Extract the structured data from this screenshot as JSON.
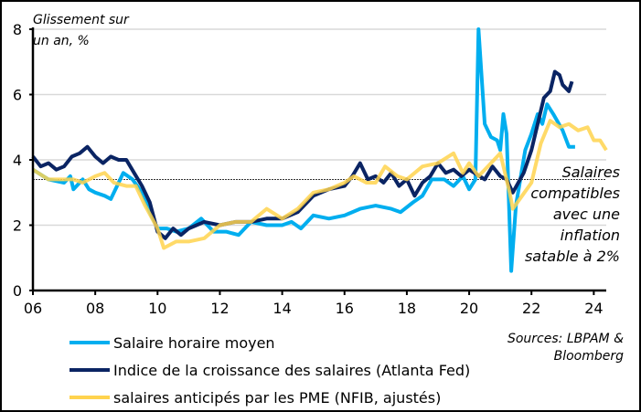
{
  "chart_data": {
    "type": "line",
    "ylabel": "Glissement sur un an, %",
    "ylabel_lines": [
      "Glissement sur",
      "un an, %"
    ],
    "ylim": [
      0,
      8
    ],
    "xlim": [
      2006,
      2024.4
    ],
    "yticks": [
      "0",
      "2",
      "4",
      "6",
      "8"
    ],
    "xticks": [
      "06",
      "08",
      "10",
      "12",
      "14",
      "16",
      "18",
      "20",
      "22",
      "24"
    ],
    "grid": true,
    "reference_line": {
      "value": 3.4,
      "label_lines": [
        "Salaires",
        "compatibles",
        "avec une",
        "inflation",
        "satable à 2%"
      ]
    },
    "sources_lines": [
      "Sources: LBPAM &",
      "Bloomberg"
    ],
    "series": [
      {
        "name": "Salaire horaire moyen",
        "color": "#00AEEF",
        "x": [
          2006,
          2006.5,
          2007,
          2007.2,
          2007.3,
          2007.6,
          2007.8,
          2008,
          2008.3,
          2008.5,
          2008.7,
          2008.9,
          2009.2,
          2009.5,
          2009.8,
          2010,
          2010.3,
          2010.6,
          2011,
          2011.4,
          2011.8,
          2012.2,
          2012.6,
          2013,
          2013.5,
          2014,
          2014.3,
          2014.6,
          2015,
          2015.5,
          2016,
          2016.5,
          2017,
          2017.5,
          2017.8,
          2018.2,
          2018.5,
          2018.8,
          2019.2,
          2019.5,
          2019.8,
          2020,
          2020.2,
          2020.3,
          2020.5,
          2020.7,
          2020.9,
          2021,
          2021.1,
          2021.2,
          2021.35,
          2021.5,
          2021.8,
          2022,
          2022.2,
          2022.35,
          2022.5,
          2022.7,
          2023,
          2023.2,
          2023.4
        ],
        "y": [
          3.7,
          3.4,
          3.3,
          3.5,
          3.1,
          3.4,
          3.1,
          3.0,
          2.9,
          2.8,
          3.2,
          3.6,
          3.4,
          3.0,
          2.3,
          1.9,
          1.9,
          1.8,
          1.9,
          2.2,
          1.8,
          1.8,
          1.7,
          2.1,
          2.0,
          2.0,
          2.1,
          1.9,
          2.3,
          2.2,
          2.3,
          2.5,
          2.6,
          2.5,
          2.4,
          2.7,
          2.9,
          3.4,
          3.4,
          3.2,
          3.5,
          3.1,
          3.4,
          8.0,
          5.1,
          4.7,
          4.6,
          4.3,
          5.4,
          4.8,
          0.6,
          2.6,
          4.3,
          4.8,
          5.4,
          5.1,
          5.7,
          5.4,
          4.9,
          4.4,
          4.4
        ]
      },
      {
        "name": "Indice de la croissance des salaires (Atlanta Fed)",
        "color": "#0A2463",
        "x": [
          2006,
          2006.25,
          2006.5,
          2006.75,
          2007,
          2007.25,
          2007.5,
          2007.75,
          2008,
          2008.25,
          2008.5,
          2008.75,
          2009,
          2009.25,
          2009.5,
          2009.75,
          2010,
          2010.25,
          2010.5,
          2010.75,
          2011,
          2011.5,
          2012,
          2012.5,
          2013,
          2013.5,
          2014,
          2014.5,
          2015,
          2015.5,
          2016,
          2016.25,
          2016.5,
          2016.75,
          2017,
          2017.25,
          2017.5,
          2017.75,
          2018,
          2018.25,
          2018.5,
          2018.75,
          2019,
          2019.25,
          2019.5,
          2019.75,
          2020,
          2020.5,
          2020.75,
          2021,
          2021.2,
          2021.4,
          2021.75,
          2022,
          2022.25,
          2022.4,
          2022.6,
          2022.75,
          2022.9,
          2023,
          2023.1,
          2023.2,
          2023.3
        ],
        "y": [
          4.1,
          3.8,
          3.9,
          3.7,
          3.8,
          4.1,
          4.2,
          4.4,
          4.1,
          3.9,
          4.1,
          4.0,
          4.0,
          3.6,
          3.2,
          2.7,
          1.8,
          1.6,
          1.9,
          1.7,
          1.9,
          2.1,
          2.0,
          2.1,
          2.1,
          2.2,
          2.2,
          2.4,
          2.9,
          3.1,
          3.2,
          3.5,
          3.9,
          3.4,
          3.5,
          3.3,
          3.6,
          3.2,
          3.4,
          2.9,
          3.3,
          3.5,
          3.9,
          3.6,
          3.7,
          3.5,
          3.7,
          3.4,
          3.8,
          3.5,
          3.4,
          3.0,
          3.6,
          4.3,
          5.3,
          5.9,
          6.1,
          6.7,
          6.6,
          6.3,
          6.2,
          6.1,
          6.4
        ]
      },
      {
        "name": "salaires anticipés par les PME (NFIB, ajustés)",
        "color": "#FFD34E",
        "x": [
          2006,
          2006.5,
          2007,
          2007.3,
          2007.6,
          2008,
          2008.3,
          2008.6,
          2009,
          2009.3,
          2009.6,
          2010,
          2010.2,
          2010.6,
          2011,
          2011.5,
          2012,
          2012.5,
          2013,
          2013.5,
          2014,
          2014.5,
          2015,
          2015.5,
          2016,
          2016.3,
          2016.7,
          2017,
          2017.3,
          2017.7,
          2018,
          2018.5,
          2019,
          2019.5,
          2019.8,
          2020,
          2020.3,
          2020.6,
          2021,
          2021.3,
          2021.4,
          2021.7,
          2022,
          2022.3,
          2022.6,
          2022.9,
          2023.2,
          2023.5,
          2023.8,
          2024,
          2024.2,
          2024.4
        ],
        "y": [
          3.7,
          3.4,
          3.4,
          3.4,
          3.3,
          3.5,
          3.6,
          3.3,
          3.2,
          3.2,
          2.6,
          1.9,
          1.3,
          1.5,
          1.5,
          1.6,
          2.0,
          2.1,
          2.1,
          2.5,
          2.2,
          2.5,
          3.0,
          3.1,
          3.3,
          3.5,
          3.3,
          3.3,
          3.8,
          3.5,
          3.4,
          3.8,
          3.9,
          4.2,
          3.6,
          3.9,
          3.5,
          3.8,
          4.2,
          3.0,
          2.5,
          2.9,
          3.3,
          4.5,
          5.2,
          5.0,
          5.1,
          4.9,
          5.0,
          4.6,
          4.6,
          4.3
        ]
      }
    ]
  }
}
